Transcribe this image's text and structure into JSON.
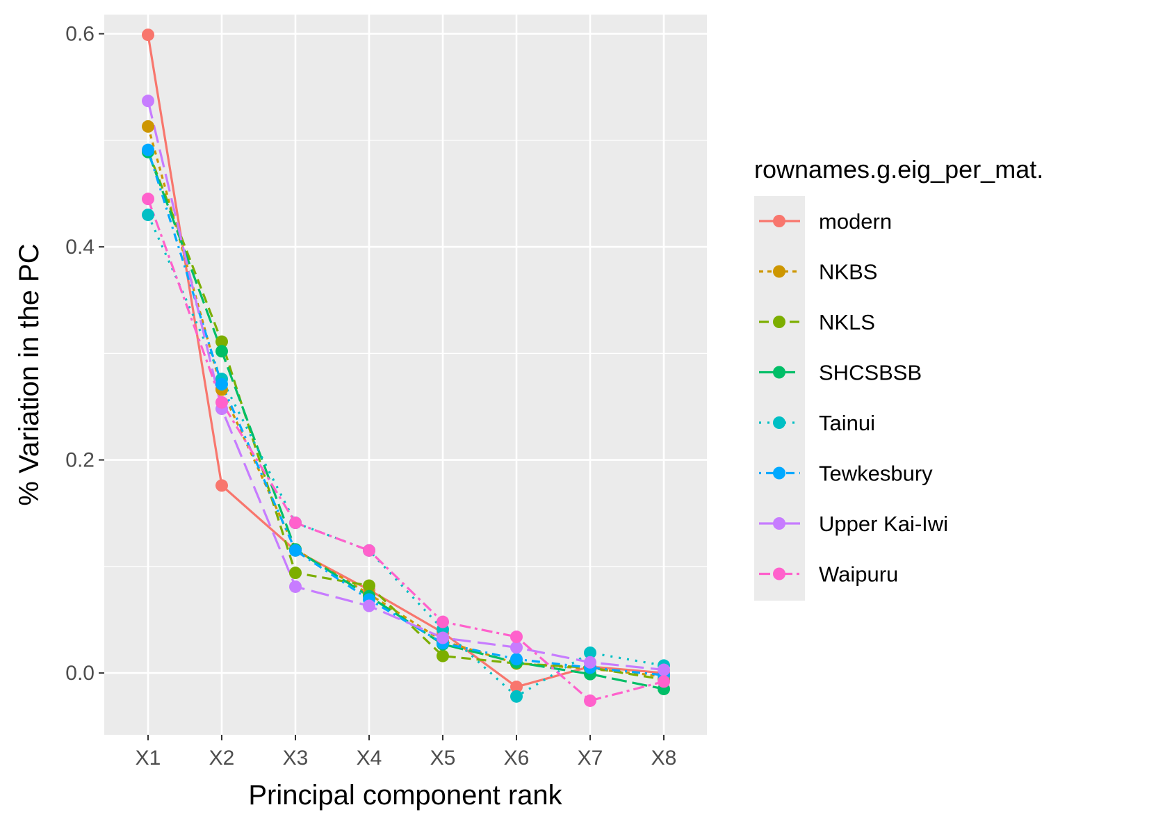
{
  "chart_data": {
    "type": "line",
    "xlabel": "Principal component rank",
    "ylabel": "% Variation in the PC",
    "categories": [
      "X1",
      "X2",
      "X3",
      "X4",
      "X5",
      "X6",
      "X7",
      "X8"
    ],
    "ylim": [
      -0.058,
      0.618
    ],
    "yticks": [
      0.0,
      0.2,
      0.4,
      0.6
    ],
    "ytick_labels": [
      "0.0",
      "0.2",
      "0.4",
      "0.6"
    ],
    "grid": true,
    "legend": {
      "title": "rownames.g.eig_per_mat.",
      "position": "right"
    },
    "series": [
      {
        "name": "modern",
        "color": "#F8766D",
        "dash": "solid",
        "values": [
          0.599,
          0.176,
          0.115,
          0.078,
          0.038,
          -0.013,
          0.006,
          0.0
        ]
      },
      {
        "name": "NKBS",
        "color": "#CD9600",
        "dash": "dashed-short",
        "values": [
          0.513,
          0.266,
          0.116,
          0.074,
          0.03,
          0.009,
          0.004,
          -0.003
        ]
      },
      {
        "name": "NKLS",
        "color": "#7CAE00",
        "dash": "dashed",
        "values": [
          0.49,
          0.311,
          0.094,
          0.082,
          0.016,
          0.009,
          0.005,
          -0.006
        ]
      },
      {
        "name": "SHCSBSB",
        "color": "#00BE67",
        "dash": "long-dashed",
        "values": [
          0.489,
          0.302,
          0.116,
          0.072,
          0.027,
          0.01,
          -0.001,
          -0.015
        ]
      },
      {
        "name": "Tainui",
        "color": "#00BFC4",
        "dash": "dotted",
        "values": [
          0.43,
          0.276,
          0.141,
          0.115,
          0.041,
          -0.022,
          0.019,
          0.007
        ]
      },
      {
        "name": "Tewkesbury",
        "color": "#00A9FF",
        "dash": "dot-dash",
        "values": [
          0.491,
          0.271,
          0.115,
          0.069,
          0.028,
          0.013,
          0.005,
          -0.002
        ]
      },
      {
        "name": "Upper Kai-Iwi",
        "color": "#C77CFF",
        "dash": "long-dash",
        "values": [
          0.537,
          0.248,
          0.081,
          0.063,
          0.033,
          0.024,
          0.01,
          0.003
        ]
      },
      {
        "name": "Waipuru",
        "color": "#FF61CC",
        "dash": "dash-dot",
        "values": [
          0.445,
          0.254,
          0.141,
          0.115,
          0.048,
          0.034,
          -0.026,
          -0.008
        ]
      }
    ]
  }
}
